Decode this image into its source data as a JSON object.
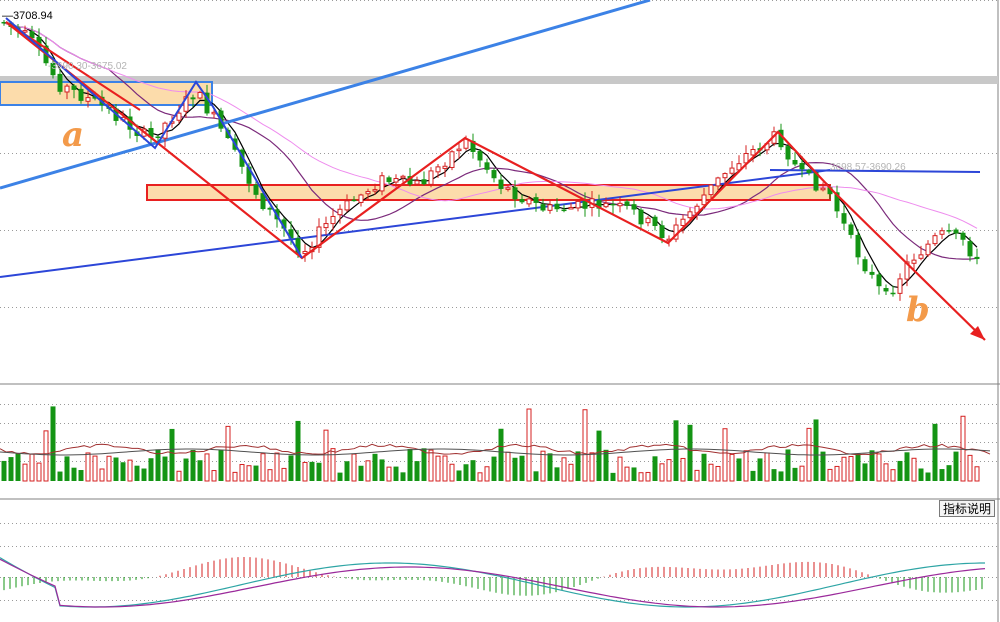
{
  "chart_data": {
    "type": "candlestick",
    "high_label": "3708.94",
    "overlay_level_label_1": "-3690.30-3675.02",
    "overlay_level_label_2": "3698.57-3690.26",
    "annotations": [
      "a",
      "b"
    ],
    "indicator_button": "指标说明",
    "colors": {
      "up": "#d42020",
      "down": "#149414",
      "ma_fast": "#000000",
      "ma_mid": "#7b2a7b",
      "ma_slow": "#ee8cee",
      "trend_red": "#e82020",
      "channel_blue": "#2c46d8",
      "trend_blue_light": "#3c82e6",
      "zone_fill": "#fcdcab",
      "macd_dif": "#2ea5a5",
      "macd_dea": "#9b2a9b"
    },
    "grid": true,
    "panels": [
      "price",
      "volume",
      "macd"
    ]
  }
}
